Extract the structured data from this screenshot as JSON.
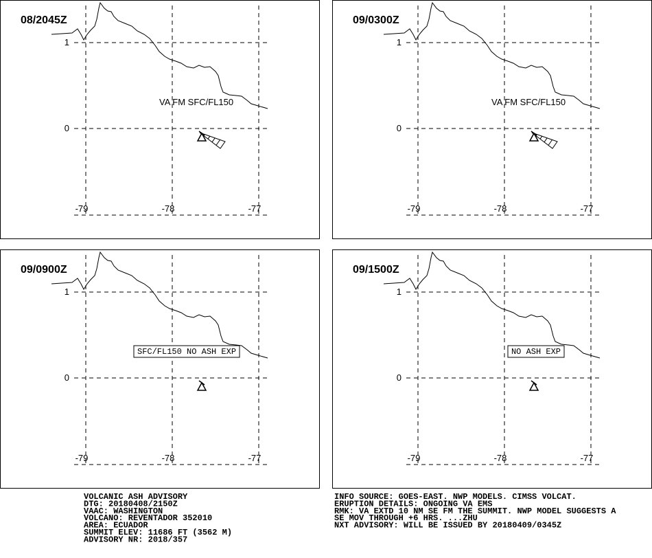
{
  "grid": {
    "lats": [
      1,
      0
    ],
    "lons": [
      -79,
      -78,
      -77
    ]
  },
  "panels": [
    {
      "time": "08/2045Z",
      "annotation": "VA FM SFC/FL150",
      "boxed": false,
      "ash": true
    },
    {
      "time": "09/0300Z",
      "annotation": "VA FM SFC/FL150",
      "boxed": false,
      "ash": true
    },
    {
      "time": "09/0900Z",
      "annotation": "SFC/FL150 NO ASH EXP",
      "boxed": true,
      "ash": false
    },
    {
      "time": "09/1500Z",
      "annotation": "NO ASH EXP",
      "boxed": true,
      "ash": false
    }
  ],
  "advisory": [
    "VOLCANIC ASH ADVISORY",
    "DTG: 20180408/2150Z",
    "VAAC: WASHINGTON",
    "VOLCANO: REVENTADOR 352010",
    "AREA: ECUADOR",
    "SUMMIT ELEV: 11686 FT (3562 M)",
    "ADVISORY NR: 2018/357"
  ],
  "info": [
    "INFO SOURCE: GOES-EAST. NWP MODELS. CIMSS VOLCAT.",
    "ERUPTION DETAILS: ONGOING VA EMS",
    "RMK: VA EXTD 10 NM SE FM THE SUMMIT. NWP MODEL SUGGESTS A",
    "SE MOV THROUGH +6 HRS. ...ZHU",
    "NXT ADVISORY: WILL BE ISSUED BY 20180409/0345Z"
  ]
}
